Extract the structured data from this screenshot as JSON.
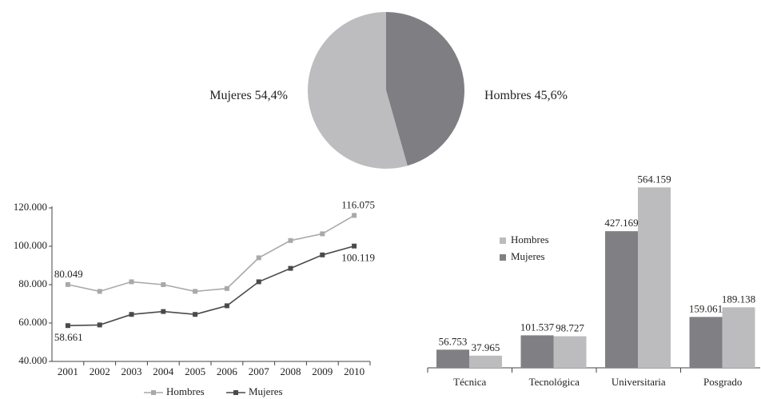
{
  "chart_data": [
    {
      "type": "pie",
      "categories": [
        "Hombres",
        "Mujeres"
      ],
      "values": [
        45.6,
        54.4
      ],
      "value_labels": [
        "45,6%",
        "54,4%"
      ],
      "colors": [
        "#7f7f83",
        "#bdbdc0"
      ]
    },
    {
      "type": "line",
      "categories": [
        "2001",
        "2002",
        "2003",
        "2004",
        "2005",
        "2006",
        "2007",
        "2008",
        "2009",
        "2010"
      ],
      "series": [
        {
          "name": "Hombres",
          "color": "#a9a9ab",
          "values": [
            80049,
            76500,
            81500,
            80000,
            76500,
            78000,
            94000,
            103000,
            106500,
            116075
          ],
          "value_labels": [
            "80.049",
            null,
            null,
            null,
            null,
            null,
            null,
            null,
            null,
            "116.075"
          ]
        },
        {
          "name": "Mujeres",
          "color": "#4a4a4c",
          "values": [
            58661,
            59000,
            64500,
            66000,
            64500,
            69000,
            81500,
            88500,
            95500,
            100119
          ],
          "value_labels": [
            "58.661",
            null,
            null,
            null,
            null,
            null,
            null,
            null,
            null,
            "100.119"
          ]
        }
      ],
      "ylim": [
        40000,
        120000
      ],
      "yticks": [
        {
          "value": 40000,
          "label": "40.000"
        },
        {
          "value": 60000,
          "label": "60.000"
        },
        {
          "value": 80000,
          "label": "80.000"
        },
        {
          "value": 100000,
          "label": "100.000"
        },
        {
          "value": 120000,
          "label": "120.000"
        }
      ],
      "legend": "bottom"
    },
    {
      "type": "bar",
      "categories": [
        "Técnica",
        "Tecnológica",
        "Universitaria",
        "Posgrado"
      ],
      "series": [
        {
          "name": "Hombres",
          "color": "#bcbcbf",
          "values": [
            37965,
            98727,
            564159,
            189138
          ],
          "value_labels": [
            "37.965",
            "98.727",
            "564.159",
            "189.138"
          ]
        },
        {
          "name": "Mujeres",
          "color": "#808084",
          "values": [
            56753,
            101537,
            427169,
            159061
          ],
          "value_labels": [
            "56.753",
            "101.537",
            "427.169",
            "159.061"
          ]
        }
      ],
      "legend": "left"
    }
  ]
}
